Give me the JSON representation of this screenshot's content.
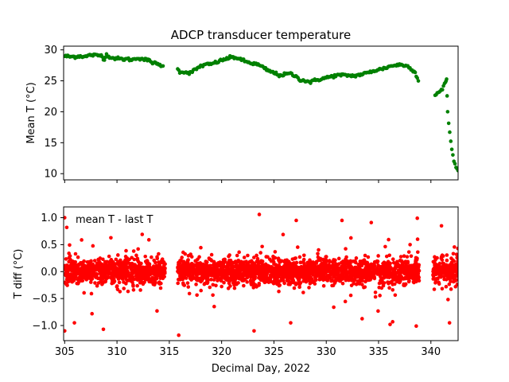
{
  "figure": {
    "title": "ADCP transducer temperature",
    "xlabel": "Decimal Day, 2022"
  },
  "colors": {
    "top_series": "#008000",
    "bottom_series": "#ff0000",
    "axes": "#000000"
  },
  "chart_data": [
    {
      "type": "scatter",
      "title": "ADCP transducer temperature",
      "xlabel": "",
      "ylabel": "Mean T (°C)",
      "xlim": [
        304.9,
        342.6
      ],
      "ylim": [
        9.0,
        30.6
      ],
      "xticks": [
        305,
        310,
        315,
        320,
        325,
        330,
        335,
        340
      ],
      "xtick_labels_shown": false,
      "yticks": [
        10,
        15,
        20,
        25,
        30
      ],
      "ytick_labels": [
        "10",
        "15",
        "20",
        "25",
        "30"
      ],
      "grid": false,
      "series": [
        {
          "color": "#008000",
          "marker": "dot",
          "profile": [
            [
              305.0,
              29.0
            ],
            [
              305.5,
              28.9
            ],
            [
              306.0,
              28.9
            ],
            [
              306.5,
              29.0
            ],
            [
              307.0,
              28.9
            ],
            [
              307.5,
              29.2
            ],
            [
              308.0,
              29.1
            ],
            [
              308.5,
              29.1
            ],
            [
              308.8,
              28.5
            ],
            [
              309.0,
              29.2
            ],
            [
              309.5,
              28.7
            ],
            [
              310.0,
              28.6
            ],
            [
              310.5,
              28.5
            ],
            [
              311.0,
              28.5
            ],
            [
              311.5,
              28.4
            ],
            [
              312.0,
              28.7
            ],
            [
              312.5,
              28.5
            ],
            [
              313.0,
              28.3
            ],
            [
              313.5,
              27.9
            ],
            [
              314.0,
              27.6
            ],
            [
              314.5,
              27.4
            ],
            [
              315.8,
              26.8
            ],
            [
              316.0,
              26.5
            ],
            [
              316.5,
              26.4
            ],
            [
              317.0,
              26.3
            ],
            [
              317.5,
              26.8
            ],
            [
              318.0,
              27.4
            ],
            [
              318.5,
              27.6
            ],
            [
              319.0,
              27.7
            ],
            [
              319.5,
              28.0
            ],
            [
              320.0,
              28.3
            ],
            [
              320.5,
              28.6
            ],
            [
              321.0,
              28.8
            ],
            [
              321.5,
              28.7
            ],
            [
              322.0,
              28.3
            ],
            [
              322.5,
              28.0
            ],
            [
              323.0,
              27.8
            ],
            [
              323.5,
              27.6
            ],
            [
              324.0,
              27.1
            ],
            [
              324.5,
              26.6
            ],
            [
              325.0,
              26.3
            ],
            [
              325.5,
              25.9
            ],
            [
              326.0,
              26.0
            ],
            [
              326.5,
              26.2
            ],
            [
              327.0,
              25.8
            ],
            [
              327.5,
              25.2
            ],
            [
              328.0,
              25.0
            ],
            [
              328.5,
              24.8
            ],
            [
              329.0,
              25.1
            ],
            [
              329.5,
              25.3
            ],
            [
              330.0,
              25.5
            ],
            [
              330.5,
              25.7
            ],
            [
              331.0,
              25.9
            ],
            [
              331.5,
              25.9
            ],
            [
              332.0,
              25.9
            ],
            [
              332.5,
              25.8
            ],
            [
              333.0,
              25.9
            ],
            [
              333.5,
              26.1
            ],
            [
              334.0,
              26.3
            ],
            [
              334.5,
              26.6
            ],
            [
              335.0,
              26.8
            ],
            [
              335.5,
              27.0
            ],
            [
              336.0,
              27.3
            ],
            [
              336.5,
              27.5
            ],
            [
              337.0,
              27.6
            ],
            [
              337.5,
              27.5
            ],
            [
              338.0,
              27.2
            ],
            [
              338.5,
              26.3
            ],
            [
              338.9,
              24.6
            ],
            [
              340.4,
              22.8
            ],
            [
              340.8,
              23.2
            ],
            [
              341.1,
              23.6
            ],
            [
              341.4,
              24.8
            ],
            [
              341.5,
              25.3
            ],
            [
              341.6,
              20.0
            ],
            [
              341.8,
              16.5
            ],
            [
              342.0,
              14.0
            ],
            [
              342.2,
              12.0
            ],
            [
              342.4,
              11.0
            ],
            [
              342.6,
              10.5
            ]
          ]
        }
      ]
    },
    {
      "type": "scatter",
      "title": "",
      "xlabel": "Decimal Day, 2022",
      "ylabel": "T diff (°C)",
      "xlim": [
        304.9,
        342.6
      ],
      "ylim": [
        -1.28,
        1.2
      ],
      "xticks": [
        305,
        310,
        315,
        320,
        325,
        330,
        335,
        340
      ],
      "xtick_labels": [
        "305",
        "310",
        "315",
        "320",
        "325",
        "330",
        "335",
        "340"
      ],
      "yticks": [
        -1.0,
        -0.5,
        0.0,
        0.5,
        1.0
      ],
      "ytick_labels": [
        "−1.0",
        "−0.5",
        "0.0",
        "0.5",
        "1.0"
      ],
      "grid": false,
      "annotation": "mean T - last T",
      "series": [
        {
          "color": "#ff0000",
          "marker": "dot",
          "center": 0.0,
          "typical_spread": 0.2,
          "data_ranges": [
            [
              305.0,
              314.6
            ],
            [
              315.8,
              338.9
            ],
            [
              340.2,
              342.6
            ]
          ],
          "outliers": [
            [
              305.0,
              -1.1
            ],
            [
              305.0,
              1.0
            ],
            [
              305.2,
              0.82
            ],
            [
              308.7,
              -1.07
            ],
            [
              315.9,
              -1.18
            ],
            [
              323.1,
              -1.1
            ],
            [
              323.6,
              1.06
            ],
            [
              326.6,
              -0.95
            ],
            [
              334.3,
              0.91
            ],
            [
              336.1,
              -0.98
            ],
            [
              338.6,
              -1.01
            ],
            [
              338.7,
              0.99
            ]
          ]
        }
      ]
    }
  ]
}
